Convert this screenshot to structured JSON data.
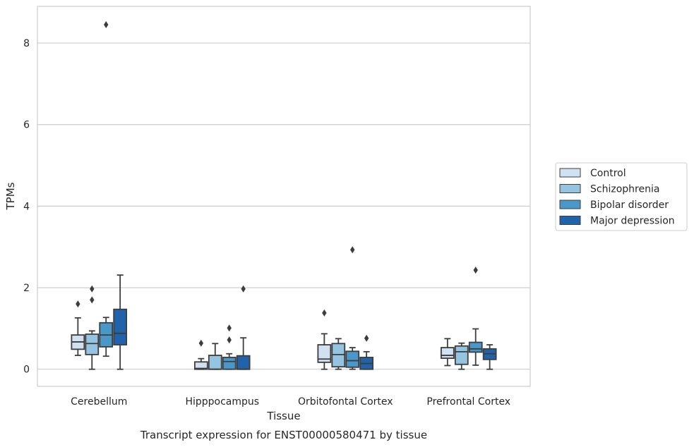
{
  "chart_data": {
    "type": "boxplot",
    "title": "",
    "caption": "Transcript expression for ENST00000580471 by tissue",
    "xlabel": "Tissue",
    "ylabel": "TPMs",
    "ylim": [
      -0.42,
      8.9
    ],
    "yticks": [
      0,
      2,
      4,
      6,
      8
    ],
    "grid": true,
    "legend_position": "right",
    "categories": [
      "Cerebellum",
      "Hipppocampus",
      "Orbitofontal Cortex",
      "Prefrontal Cortex"
    ],
    "series": [
      {
        "name": "Control",
        "color": "#d0e1f2",
        "boxes": [
          {
            "whisker_low": 0.34,
            "q1": 0.49,
            "median": 0.67,
            "q3": 0.84,
            "whisker_high": 1.26,
            "outliers": [
              1.6
            ]
          },
          {
            "whisker_low": 0.0,
            "q1": 0.0,
            "median": 0.02,
            "q3": 0.18,
            "whisker_high": 0.26,
            "outliers": [
              0.64
            ]
          },
          {
            "whisker_low": 0.0,
            "q1": 0.17,
            "median": 0.25,
            "q3": 0.6,
            "whisker_high": 0.87,
            "outliers": [
              1.38
            ]
          },
          {
            "whisker_low": 0.09,
            "q1": 0.27,
            "median": 0.34,
            "q3": 0.53,
            "whisker_high": 0.75,
            "outliers": []
          }
        ]
      },
      {
        "name": "Schizophrenia",
        "color": "#94c4df",
        "boxes": [
          {
            "whisker_low": 0.0,
            "q1": 0.36,
            "median": 0.63,
            "q3": 0.86,
            "whisker_high": 0.94,
            "outliers": [
              1.7,
              1.97
            ]
          },
          {
            "whisker_low": 0.0,
            "q1": 0.0,
            "median": 0.0,
            "q3": 0.34,
            "whisker_high": 0.63,
            "outliers": []
          },
          {
            "whisker_low": 0.0,
            "q1": 0.06,
            "median": 0.36,
            "q3": 0.63,
            "whisker_high": 0.75,
            "outliers": []
          },
          {
            "whisker_low": 0.0,
            "q1": 0.12,
            "median": 0.43,
            "q3": 0.57,
            "whisker_high": 0.64,
            "outliers": []
          }
        ]
      },
      {
        "name": "Bipolar disorder",
        "color": "#4a98c9",
        "boxes": [
          {
            "whisker_low": 0.32,
            "q1": 0.55,
            "median": 0.84,
            "q3": 1.14,
            "whisker_high": 1.27,
            "outliers": [
              8.45
            ]
          },
          {
            "whisker_low": 0.0,
            "q1": 0.0,
            "median": 0.19,
            "q3": 0.29,
            "whisker_high": 0.38,
            "outliers": [
              0.72,
              1.01
            ]
          },
          {
            "whisker_low": 0.0,
            "q1": 0.05,
            "median": 0.21,
            "q3": 0.44,
            "whisker_high": 0.53,
            "outliers": [
              2.93
            ]
          },
          {
            "whisker_low": 0.1,
            "q1": 0.42,
            "median": 0.5,
            "q3": 0.66,
            "whisker_high": 0.99,
            "outliers": [
              2.43
            ]
          }
        ]
      },
      {
        "name": "Major depression",
        "color": "#2163aa",
        "boxes": [
          {
            "whisker_low": 0.0,
            "q1": 0.6,
            "median": 0.88,
            "q3": 1.47,
            "whisker_high": 2.31,
            "outliers": []
          },
          {
            "whisker_low": 0.0,
            "q1": 0.0,
            "median": 0.0,
            "q3": 0.33,
            "whisker_high": 0.77,
            "outliers": [
              1.97
            ]
          },
          {
            "whisker_low": 0.0,
            "q1": 0.0,
            "median": 0.14,
            "q3": 0.29,
            "whisker_high": 0.43,
            "outliers": [
              0.76
            ]
          },
          {
            "whisker_low": 0.0,
            "q1": 0.24,
            "median": 0.38,
            "q3": 0.5,
            "whisker_high": 0.6,
            "outliers": []
          }
        ]
      }
    ]
  }
}
